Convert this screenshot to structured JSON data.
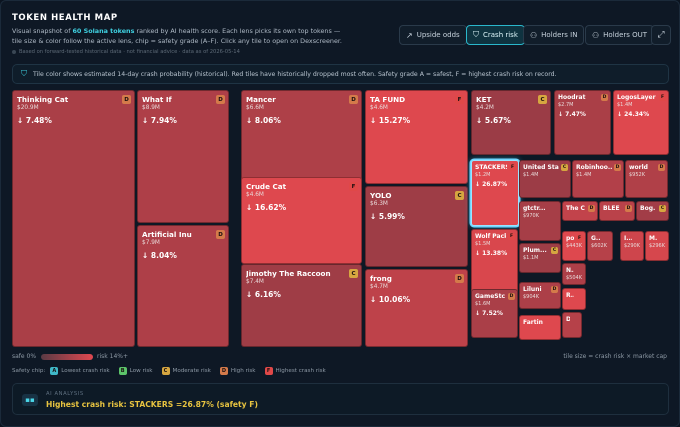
{
  "header": {
    "title": "TOKEN HEALTH MAP",
    "desc_pre": "Visual snapshot of ",
    "desc_highlight": "60 Solana tokens",
    "desc_post": " ranked by AI health score. Each lens picks its own top tokens — tile size & color follow the active lens, chip = safety grade (A–F). Click any tile to open on Dexscreener.",
    "disclaimer": "Based on forward-tested historical data · not financial advice · data as of 2026-05-14"
  },
  "lenses": [
    {
      "label": "Upside odds",
      "icon": "trend-icon",
      "active": false
    },
    {
      "label": "Crash risk",
      "icon": "shield-icon",
      "active": true
    },
    {
      "label": "Holders IN",
      "icon": "users-in-icon",
      "active": false
    },
    {
      "label": "Holders OUT",
      "icon": "users-out-icon",
      "active": false
    }
  ],
  "info_text": "Tile color shows estimated 14-day crash probability (historical). Red tiles have historically dropped most often. Safety grade A = safest, F = highest crash risk on record.",
  "colors": {
    "grade_A": "#3fb8c8",
    "grade_B": "#5cc46a",
    "grade_C": "#d6a640",
    "grade_D": "#d47a4a",
    "grade_F": "#e04848",
    "accent": "#2ab8cc",
    "warning_text": "#e8c440"
  },
  "tiles": [
    {
      "name": "Thinking Cat",
      "cap": "$20.9M",
      "risk": "↓ 7.48%",
      "grade": "D",
      "pct": 7.48
    },
    {
      "name": "What If",
      "cap": "$8.9M",
      "risk": "↓ 7.94%",
      "grade": "D",
      "pct": 7.94
    },
    {
      "name": "Artificial Inu",
      "cap": "$7.9M",
      "risk": "↓ 8.04%",
      "grade": "D",
      "pct": 8.04
    },
    {
      "name": "Mancer",
      "cap": "$6.6M",
      "risk": "↓ 8.06%",
      "grade": "D",
      "pct": 8.06
    },
    {
      "name": "Crude Cat",
      "cap": "$4.6M",
      "risk": "↓ 16.62%",
      "grade": "F",
      "pct": 16.62
    },
    {
      "name": "Jimothy The Raccoon",
      "cap": "$7.4M",
      "risk": "↓ 6.16%",
      "grade": "C",
      "pct": 6.16
    },
    {
      "name": "TA FUND",
      "cap": "$4.6M",
      "risk": "↓ 15.27%",
      "grade": "F",
      "pct": 15.27
    },
    {
      "name": "YOLO",
      "cap": "$6.3M",
      "risk": "↓ 5.99%",
      "grade": "C",
      "pct": 5.99
    },
    {
      "name": "frong",
      "cap": "$4.7M",
      "risk": "↓ 10.06%",
      "grade": "D",
      "pct": 10.06
    },
    {
      "name": "KET",
      "cap": "$4.2M",
      "risk": "↓ 5.67%",
      "grade": "C",
      "pct": 5.67
    },
    {
      "name": "Hoodrat",
      "cap": "$2.7M",
      "risk": "↓ 7.47%",
      "grade": "D",
      "pct": 7.47
    },
    {
      "name": "LogosLayer",
      "cap": "$1.4M",
      "risk": "↓ 24.34%",
      "grade": "F",
      "pct": 24.34
    },
    {
      "name": "STACKERS",
      "cap": "$1.2M",
      "risk": "↓ 26.87%",
      "grade": "F",
      "pct": 26.87,
      "selected": true
    },
    {
      "name": "United Sta...",
      "cap": "$1.4M",
      "risk": "",
      "grade": "C",
      "pct": 5.8
    },
    {
      "name": "Robinhoo...",
      "cap": "$1.4M",
      "risk": "",
      "grade": "D",
      "pct": 8.5
    },
    {
      "name": "world",
      "cap": "$952K",
      "risk": "",
      "grade": "D",
      "pct": 8.2
    },
    {
      "name": "Wolf Pack",
      "cap": "$1.5M",
      "risk": "↓ 13.38%",
      "grade": "F",
      "pct": 13.38
    },
    {
      "name": "gtctr...",
      "cap": "$970K",
      "risk": "",
      "grade": "",
      "pct": 7.0
    },
    {
      "name": "The C",
      "cap": "",
      "risk": "",
      "grade": "D",
      "pct": 10.5
    },
    {
      "name": "BLEE",
      "cap": "",
      "risk": "",
      "grade": "D",
      "pct": 9.5
    },
    {
      "name": "Bog.",
      "cap": "",
      "risk": "",
      "grade": "C",
      "pct": 6.5
    },
    {
      "name": "Plum...",
      "cap": "$1.1M",
      "risk": "",
      "grade": "C",
      "pct": 6.0
    },
    {
      "name": "po.",
      "cap": "$443K",
      "risk": "",
      "grade": "F",
      "pct": 18.0
    },
    {
      "name": "G...",
      "cap": "$602K",
      "risk": "",
      "grade": "",
      "pct": 9.0
    },
    {
      "name": "I...",
      "cap": "$290K",
      "risk": "",
      "grade": "",
      "pct": 12.0
    },
    {
      "name": "M...",
      "cap": "$296K",
      "risk": "",
      "grade": "",
      "pct": 13.0
    },
    {
      "name": "GameStc",
      "cap": "$1.6M",
      "risk": "↓ 7.52%",
      "grade": "D",
      "pct": 7.52
    },
    {
      "name": "Liluni",
      "cap": "$904K",
      "risk": "",
      "grade": "D",
      "pct": 7.8
    },
    {
      "name": "N...",
      "cap": "$504K",
      "risk": "",
      "grade": "",
      "pct": 8.0
    },
    {
      "name": "Fartin",
      "cap": "",
      "risk": "",
      "grade": "",
      "pct": 15.0
    },
    {
      "name": "R...",
      "cap": "",
      "risk": "",
      "grade": "",
      "pct": 14.0
    },
    {
      "name": "D...",
      "cap": "",
      "risk": "",
      "grade": "",
      "pct": 9.0
    }
  ],
  "legend": {
    "safe_label": "safe 0%",
    "risk_label": "risk 14%+",
    "size_note": "tile size = crash risk × market cap",
    "chips_label": "Safety chip:",
    "chips": [
      {
        "grade": "A",
        "label": "Lowest crash risk"
      },
      {
        "grade": "B",
        "label": "Low risk"
      },
      {
        "grade": "C",
        "label": "Moderate risk"
      },
      {
        "grade": "D",
        "label": "High risk"
      },
      {
        "grade": "F",
        "label": "Highest crash risk"
      }
    ]
  },
  "ai": {
    "label": "AI ANALYSIS",
    "message": "Highest crash risk: STACKERS =26.87% (safety F)"
  }
}
